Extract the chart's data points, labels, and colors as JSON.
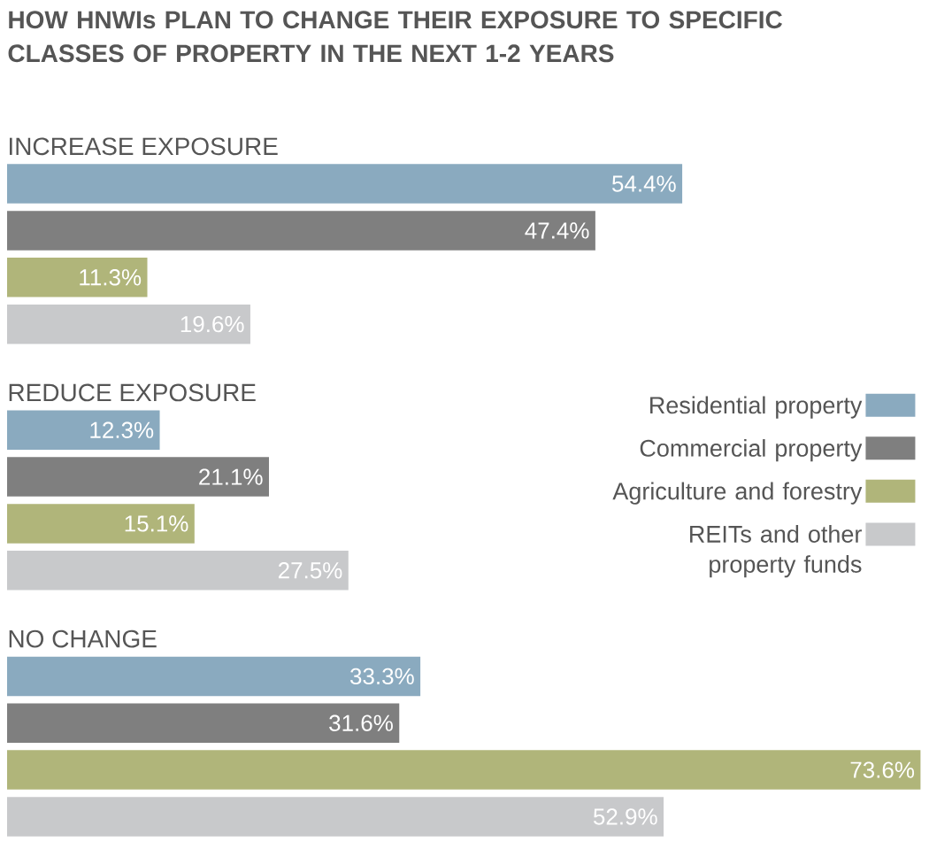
{
  "chart_data": {
    "type": "bar",
    "orientation": "horizontal",
    "title": "HOW HNWIs PLAN TO CHANGE THEIR EXPOSURE TO SPECIFIC CLASSES OF PROPERTY IN THE NEXT 1-2 YEARS",
    "categories": [
      "INCREASE EXPOSURE",
      "REDUCE EXPOSURE",
      "NO CHANGE"
    ],
    "xlim": [
      0,
      74
    ],
    "legend": "right",
    "series": [
      {
        "name": "Residential property",
        "color": "#8aaabf",
        "values": [
          54.4,
          12.3,
          33.3
        ],
        "value_labels": [
          "54.4%",
          "12.3%",
          "33.3%"
        ]
      },
      {
        "name": "Commercial property",
        "color": "#7f7f7f",
        "values": [
          47.4,
          21.1,
          31.6
        ],
        "value_labels": [
          "47.4%",
          "21.1%",
          "31.6%"
        ]
      },
      {
        "name": "Agriculture and forestry",
        "color": "#b0b57a",
        "values": [
          11.3,
          15.1,
          73.6
        ],
        "value_labels": [
          "11.3%",
          "15.1%",
          "73.6%"
        ]
      },
      {
        "name": "REITs and other property funds",
        "color": "#c8c9cb",
        "values": [
          19.6,
          27.5,
          52.9
        ],
        "value_labels": [
          "19.6%",
          "27.5%",
          "52.9%"
        ]
      }
    ]
  }
}
